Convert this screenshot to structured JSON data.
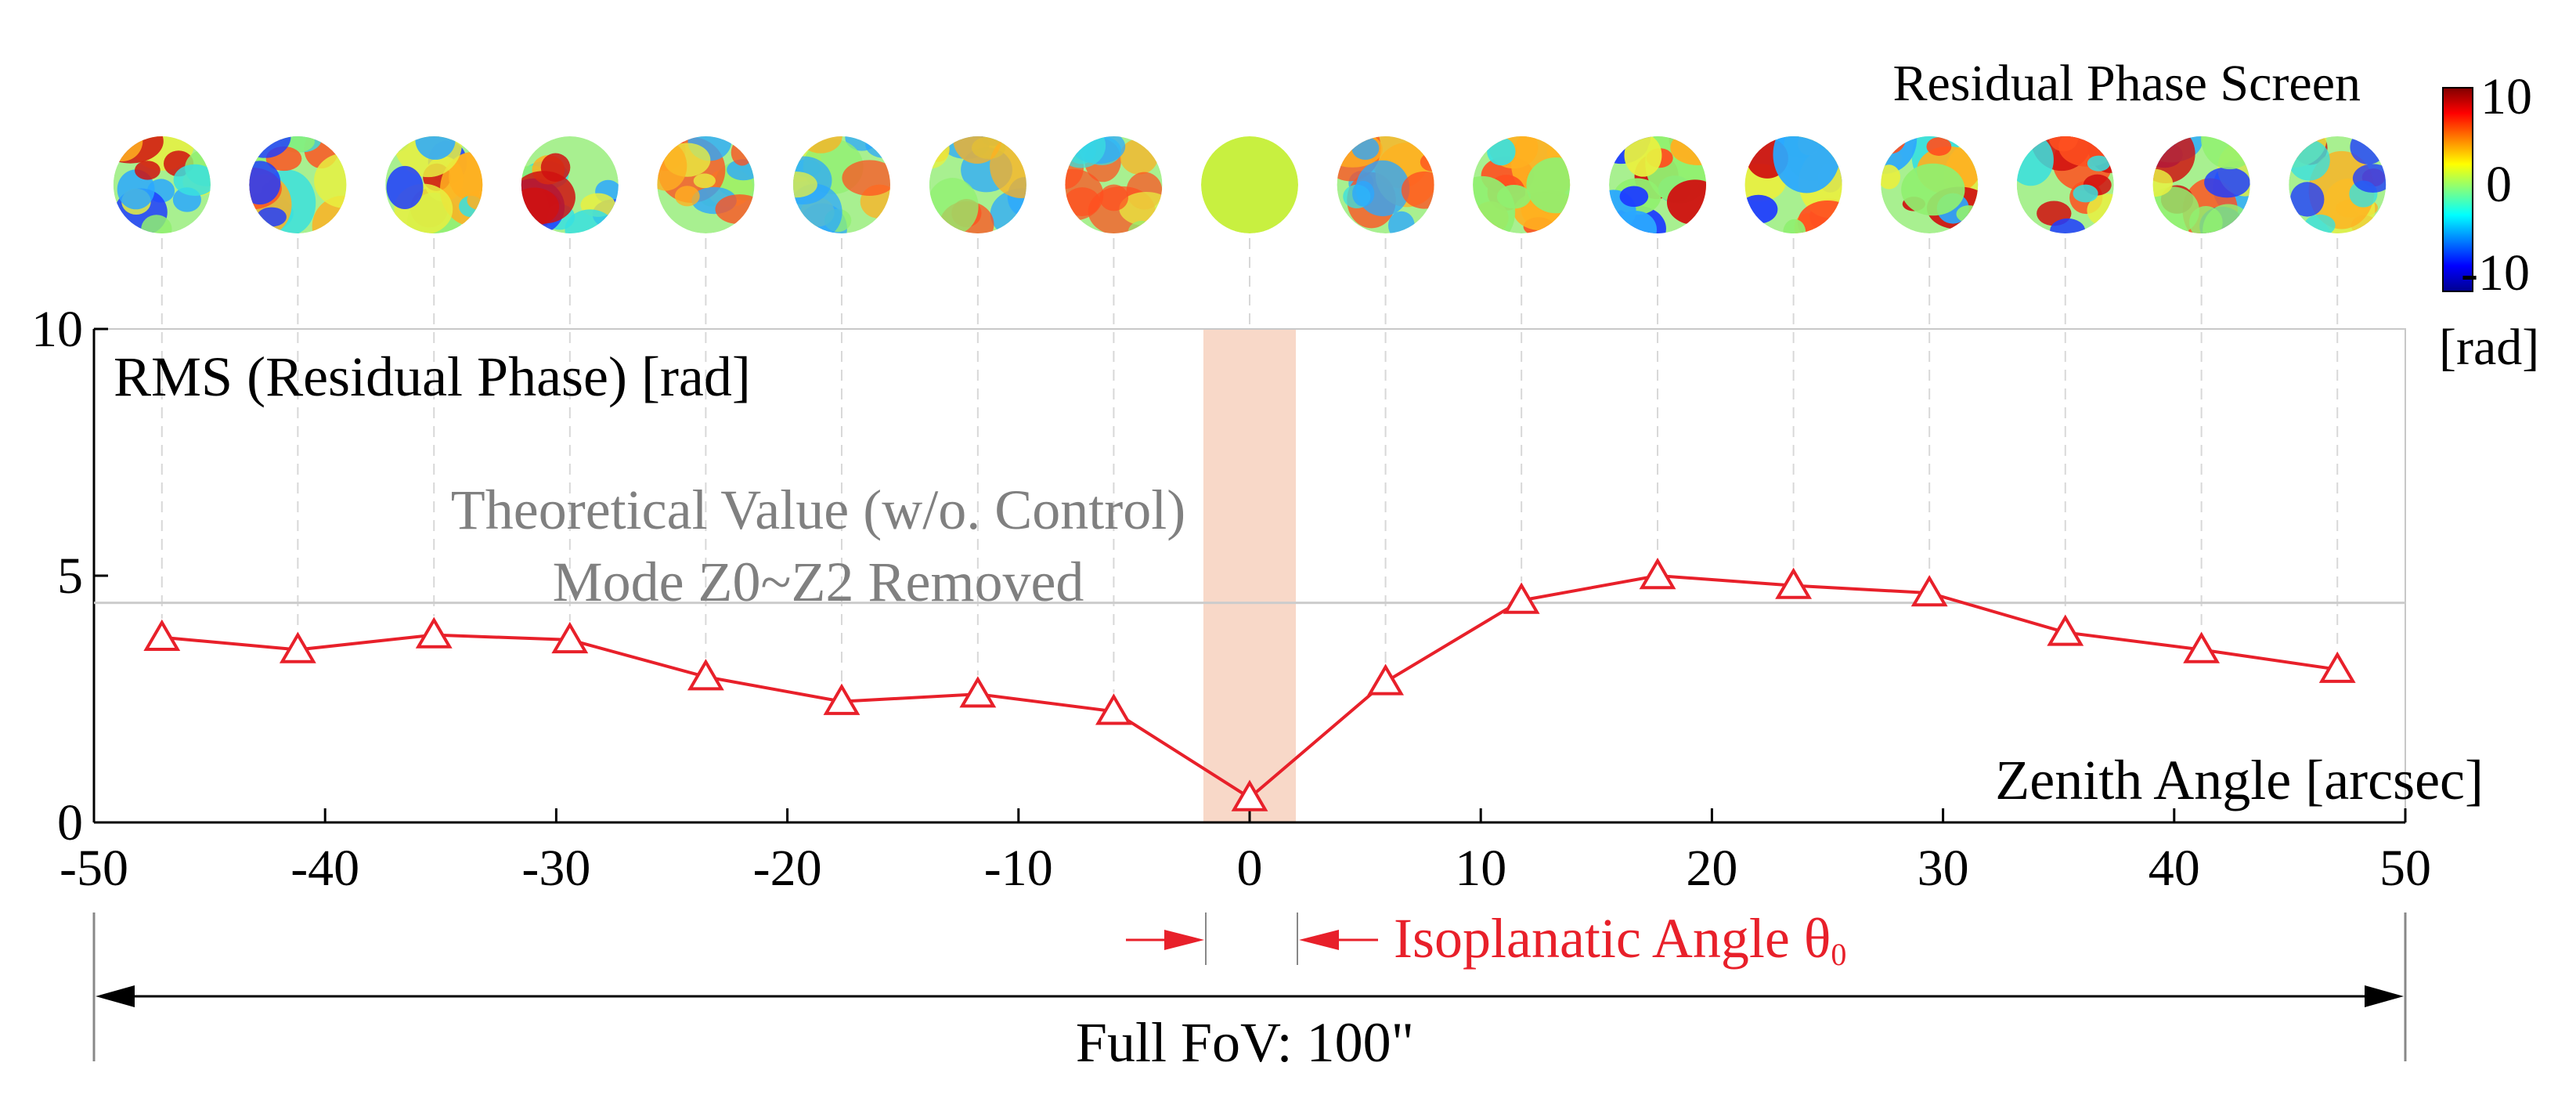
{
  "chart_data": {
    "type": "line",
    "title": "",
    "xlabel": "Zenith Angle [arcsec]",
    "ylabel": "RMS (Residual Phase) [rad]",
    "xlim": [
      -50,
      50
    ],
    "ylim": [
      0,
      10
    ],
    "x_ticks": [
      -50,
      -40,
      -30,
      -20,
      -10,
      0,
      10,
      20,
      30,
      40,
      50
    ],
    "y_ticks": [
      0,
      5,
      10
    ],
    "series": [
      {
        "name": "RMS residual phase",
        "marker": "triangle-open",
        "color": "#e8202a",
        "x": [
          -47.06,
          -41.18,
          -35.29,
          -29.41,
          -23.53,
          -17.65,
          -11.76,
          -5.88,
          0,
          5.88,
          11.76,
          17.65,
          23.53,
          29.41,
          35.29,
          41.18,
          47.06
        ],
        "values": [
          3.75,
          3.5,
          3.8,
          3.7,
          2.95,
          2.45,
          2.6,
          2.25,
          0.5,
          2.85,
          4.5,
          5.0,
          4.8,
          4.65,
          3.85,
          3.5,
          3.1
        ]
      }
    ],
    "reference_line": {
      "value": 4.45,
      "label_line1": "Theoretical Value (w/o. Control)",
      "label_line2": "Mode Z0~Z2 Removed",
      "color": "#cccccc"
    },
    "shaded_band": {
      "x_range": [
        -2,
        2
      ],
      "color": "#f8d8c8"
    },
    "isoplanatic_label": "Isoplanatic Angle θ",
    "isoplanatic_subscript": "0",
    "fov_label": "Full FoV: 100\"",
    "fov_range": [
      -50,
      50
    ],
    "phase_screens": {
      "title": "Residual Phase Screen",
      "count": 17,
      "colorbar_max": "10",
      "colorbar_mid": "0",
      "colorbar_min": "-10",
      "colorbar_unit": "[rad]"
    }
  }
}
